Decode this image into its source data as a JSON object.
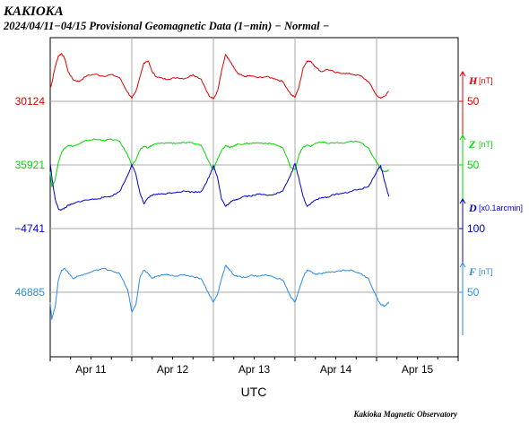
{
  "header": {
    "station": "KAKIOKA",
    "subtitle": "2024/04/11−04/15  Provisional Geomagnetic Data (1−min)  − Normal −"
  },
  "footer": {
    "credit": "Kakioka Magnetic Observatory"
  },
  "chart_data": {
    "type": "line",
    "xlabel": "UTC",
    "x_ticks": [
      "Apr 11",
      "Apr 12",
      "Apr 13",
      "Apr 14",
      "Apr 15"
    ],
    "x_range_days": [
      0,
      5
    ],
    "grid": true,
    "series": [
      {
        "name": "H",
        "unit": "[nT]",
        "color": "#e00000",
        "baseline_label": "30124",
        "right_tick": "50",
        "t": [
          0,
          0.02,
          0.06,
          0.1,
          0.14,
          0.18,
          0.22,
          0.28,
          0.35,
          0.45,
          0.55,
          0.65,
          0.75,
          0.85,
          0.95,
          1.0,
          1.05,
          1.1,
          1.15,
          1.2,
          1.25,
          1.3,
          1.38,
          1.45,
          1.55,
          1.65,
          1.75,
          1.85,
          1.95,
          2.0,
          2.05,
          2.1,
          2.15,
          2.2,
          2.25,
          2.3,
          2.38,
          2.45,
          2.55,
          2.65,
          2.75,
          2.85,
          2.95,
          3.0,
          3.05,
          3.1,
          3.15,
          3.2,
          3.25,
          3.32,
          3.4,
          3.5,
          3.6,
          3.7,
          3.8,
          3.9,
          4.0,
          4.05,
          4.1,
          4.15
        ],
        "value": [
          26,
          37,
          70,
          92,
          97,
          86,
          60,
          44,
          40,
          52,
          55,
          51,
          54,
          48,
          18,
          6,
          20,
          50,
          78,
          82,
          60,
          50,
          46,
          45,
          48,
          46,
          54,
          45,
          10,
          5,
          20,
          62,
          95,
          82,
          68,
          56,
          50,
          52,
          48,
          50,
          46,
          40,
          14,
          8,
          30,
          68,
          82,
          80,
          70,
          60,
          65,
          58,
          57,
          55,
          52,
          40,
          12,
          6,
          11,
          20
        ]
      },
      {
        "name": "Z",
        "unit": "[nT]",
        "color": "#00d800",
        "baseline_label": "35921",
        "right_tick": "50",
        "t": [
          0,
          0.02,
          0.06,
          0.1,
          0.14,
          0.18,
          0.22,
          0.28,
          0.35,
          0.45,
          0.55,
          0.65,
          0.75,
          0.85,
          0.95,
          1.0,
          1.05,
          1.1,
          1.15,
          1.2,
          1.25,
          1.3,
          1.38,
          1.45,
          1.55,
          1.65,
          1.75,
          1.85,
          1.95,
          2.0,
          2.05,
          2.1,
          2.15,
          2.2,
          2.25,
          2.3,
          2.38,
          2.45,
          2.55,
          2.65,
          2.75,
          2.85,
          2.95,
          3.0,
          3.05,
          3.1,
          3.15,
          3.2,
          3.25,
          3.32,
          3.4,
          3.5,
          3.6,
          3.7,
          3.8,
          3.9,
          4.0,
          4.05,
          4.1,
          4.15
        ],
        "value": [
          -14,
          -44,
          -30,
          5,
          26,
          35,
          40,
          38,
          42,
          50,
          52,
          50,
          52,
          48,
          20,
          0,
          10,
          30,
          38,
          35,
          40,
          43,
          44,
          45,
          44,
          45,
          44,
          40,
          5,
          -10,
          12,
          30,
          40,
          35,
          39,
          42,
          43,
          44,
          45,
          44,
          42,
          35,
          -5,
          -10,
          22,
          36,
          40,
          38,
          44,
          46,
          44,
          45,
          44,
          48,
          46,
          35,
          5,
          -8,
          -14,
          -10
        ]
      },
      {
        "name": "D",
        "unit": "[x0.1arcmin]",
        "color": "#0000cc",
        "baseline_label": "−4741",
        "right_tick": "100",
        "t": [
          0,
          0.02,
          0.06,
          0.1,
          0.14,
          0.18,
          0.22,
          0.28,
          0.35,
          0.45,
          0.55,
          0.65,
          0.75,
          0.85,
          0.95,
          1.0,
          1.05,
          1.1,
          1.15,
          1.2,
          1.25,
          1.3,
          1.38,
          1.45,
          1.55,
          1.65,
          1.75,
          1.85,
          1.95,
          2.0,
          2.05,
          2.1,
          2.15,
          2.2,
          2.25,
          2.3,
          2.38,
          2.45,
          2.55,
          2.65,
          2.75,
          2.85,
          2.95,
          3.0,
          3.05,
          3.1,
          3.15,
          3.2,
          3.25,
          3.32,
          3.4,
          3.5,
          3.6,
          3.7,
          3.8,
          3.9,
          4.0,
          4.05,
          4.1,
          4.15
        ],
        "value": [
          133,
          105,
          60,
          40,
          38,
          42,
          47,
          50,
          55,
          58,
          60,
          63,
          66,
          75,
          108,
          130,
          110,
          72,
          50,
          62,
          68,
          70,
          70,
          72,
          74,
          76,
          74,
          75,
          105,
          128,
          105,
          60,
          45,
          52,
          58,
          60,
          66,
          66,
          70,
          68,
          70,
          76,
          110,
          132,
          100,
          65,
          45,
          52,
          58,
          62,
          64,
          70,
          72,
          76,
          80,
          85,
          115,
          128,
          95,
          65
        ]
      },
      {
        "name": "F",
        "unit": "[nT]",
        "color": "#2b8ae8",
        "baseline_label": "46885",
        "right_tick": "50",
        "t": [
          0,
          0.02,
          0.06,
          0.1,
          0.14,
          0.18,
          0.22,
          0.28,
          0.35,
          0.45,
          0.55,
          0.65,
          0.75,
          0.85,
          0.95,
          1.0,
          1.05,
          1.1,
          1.15,
          1.2,
          1.25,
          1.3,
          1.38,
          1.45,
          1.55,
          1.65,
          1.75,
          1.85,
          1.95,
          2.0,
          2.05,
          2.1,
          2.15,
          2.2,
          2.25,
          2.3,
          2.38,
          2.45,
          2.55,
          2.65,
          2.75,
          2.85,
          2.95,
          3.0,
          3.05,
          3.1,
          3.15,
          3.2,
          3.25,
          3.32,
          3.4,
          3.5,
          3.6,
          3.7,
          3.8,
          3.9,
          4.0,
          4.05,
          4.1,
          4.15
        ],
        "value": [
          -20,
          -55,
          -30,
          25,
          45,
          48,
          40,
          28,
          33,
          38,
          44,
          48,
          44,
          38,
          5,
          -40,
          -25,
          30,
          45,
          38,
          28,
          32,
          35,
          36,
          33,
          35,
          32,
          28,
          -5,
          -20,
          -5,
          28,
          55,
          45,
          35,
          32,
          30,
          34,
          33,
          35,
          30,
          25,
          -10,
          -20,
          5,
          30,
          45,
          42,
          36,
          38,
          40,
          42,
          45,
          44,
          38,
          28,
          -10,
          -25,
          -28,
          -20
        ]
      }
    ]
  }
}
